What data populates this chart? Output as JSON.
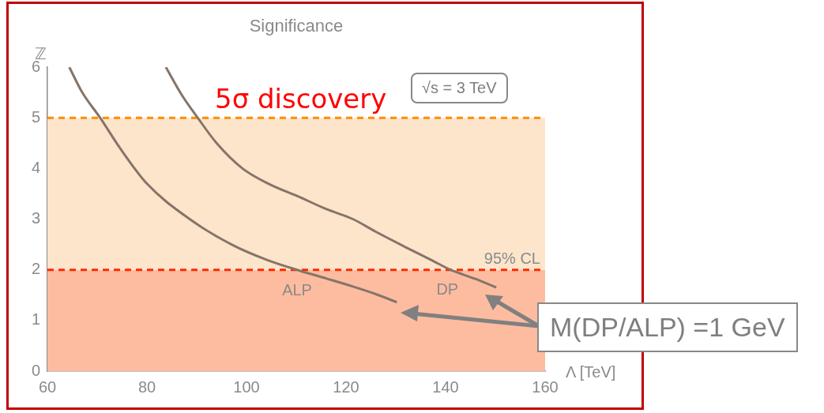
{
  "chart_data": {
    "type": "line",
    "title": "Significance",
    "xlabel": "Λ [TeV]",
    "ylabel": "ℤ",
    "xlim": [
      60,
      160
    ],
    "xticks": [
      60,
      80,
      100,
      120,
      140,
      160
    ],
    "ylim": [
      0,
      6
    ],
    "yticks": [
      0,
      1,
      2,
      3,
      4,
      5,
      6
    ],
    "grid": false,
    "legend": false,
    "marker": "none",
    "line_style": "solid",
    "series": [
      {
        "name": "ALP",
        "color": "#857568",
        "x": [
          64.4,
          67,
          70.6,
          74.6,
          80,
          88.6,
          97,
          104,
          110.8,
          116,
          121.4,
          126,
          130.2
        ],
        "values": [
          6,
          5.5,
          5,
          4.4,
          3.7,
          3,
          2.5,
          2.2,
          1.98,
          1.83,
          1.67,
          1.52,
          1.36
        ]
      },
      {
        "name": "DP",
        "color": "#857568",
        "x": [
          83.8,
          87,
          90.2,
          94,
          99.2,
          104.4,
          110.8,
          116,
          121.4,
          126,
          131.9,
          137,
          141,
          146,
          150.2
        ],
        "values": [
          6,
          5.45,
          5,
          4.5,
          4,
          3.7,
          3.43,
          3.2,
          3,
          2.75,
          2.45,
          2.2,
          2,
          1.82,
          1.65
        ]
      }
    ],
    "bands": [
      {
        "axis": "y",
        "from": 0,
        "to": 2,
        "color": "#fdbca0"
      },
      {
        "axis": "y",
        "from": 2,
        "to": 5,
        "color": "#fde5cc"
      }
    ],
    "ref_lines": [
      {
        "axis": "y",
        "value": 5,
        "label": "5σ discovery",
        "color": "#ff8c00",
        "line_style": "dashed"
      },
      {
        "axis": "y",
        "value": 2,
        "label": "95% CL",
        "color": "#ff2a00",
        "line_style": "dashed"
      }
    ],
    "annotations": [
      "√s = 3 TeV",
      "M(DP/ALP) =1 GeV"
    ]
  }
}
